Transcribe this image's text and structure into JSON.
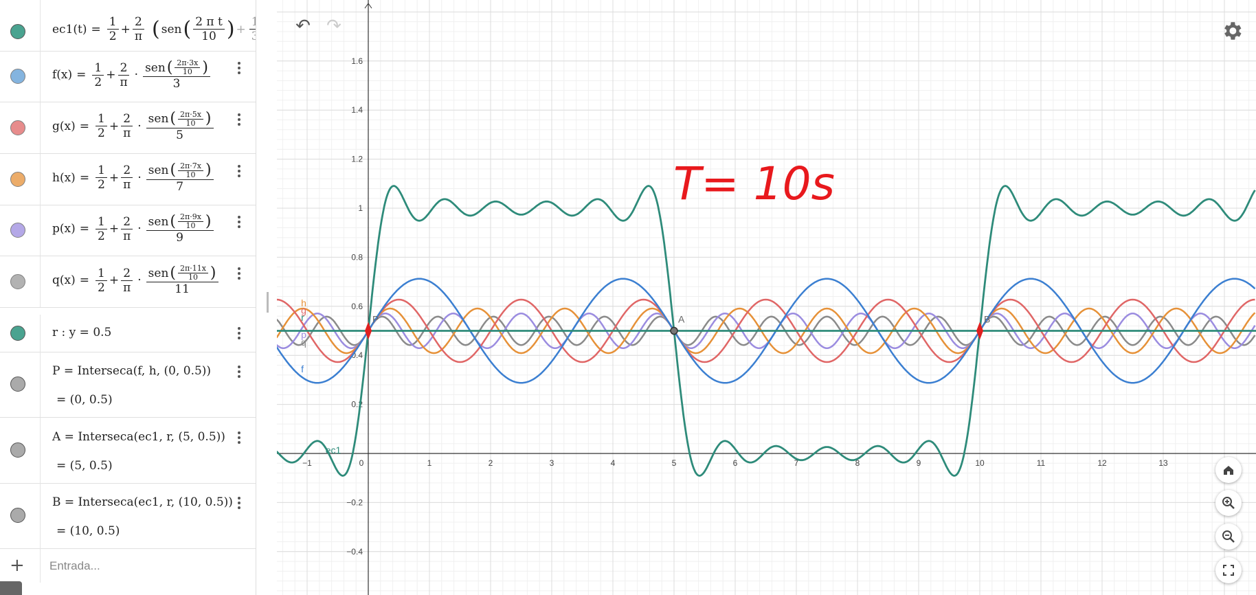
{
  "algebra": {
    "rows": [
      {
        "id": "ec1",
        "name": "ec1(t)",
        "color": "#2e8b7a"
      },
      {
        "id": "f",
        "name": "f(x)",
        "color": "#5b9bd5",
        "k": "3",
        "num": "2π·3x"
      },
      {
        "id": "g",
        "name": "g(x)",
        "color": "#e06666",
        "k": "5",
        "num": "2π·5x"
      },
      {
        "id": "h",
        "name": "h(x)",
        "color": "#e69138",
        "k": "7",
        "num": "2π·7x"
      },
      {
        "id": "p",
        "name": "p(x)",
        "color": "#9b8ce0",
        "k": "9",
        "num": "2π·9x"
      },
      {
        "id": "q",
        "name": "q(x)",
        "color": "#999999",
        "k": "11",
        "num": "2π·11x"
      }
    ],
    "ec1_tail": "sen",
    "ec1_inner_num": "2 π t",
    "ec1_inner_den": "10",
    "ec1_next_num": "1",
    "ec1_next_den": "3",
    "ec1_trunc": "s",
    "half_num": "1",
    "half_den": "2",
    "two_num": "2",
    "pi": "π",
    "sen": "sen",
    "ten": "10",
    "r_line": "r : y = 0.5",
    "r_color": "#2e8b7a",
    "points": [
      {
        "def": "P = Interseca(f, h, (0,  0.5))",
        "val": "= (0, 0.5)",
        "color": "#aaaaaa"
      },
      {
        "def": "A = Interseca(ec1, r, (5,  0.5))",
        "val": "= (5, 0.5)",
        "color": "#aaaaaa"
      },
      {
        "def": "B = Interseca(ec1, r, (10,  0.5))",
        "val": "= (10, 0.5)",
        "color": "#aaaaaa"
      }
    ],
    "input_placeholder": "Entrada..."
  },
  "toolbar": {
    "undo_icon": "undo-icon",
    "redo_icon": "redo-icon",
    "settings_icon": "gear-icon"
  },
  "chart_data": {
    "type": "line",
    "xlim": [
      -1.5,
      14.5
    ],
    "ylim": [
      -0.55,
      1.75
    ],
    "xticks": [
      "-1",
      "0",
      "1",
      "2",
      "3",
      "4",
      "5",
      "6",
      "7",
      "8",
      "9",
      "10",
      "11",
      "12",
      "13"
    ],
    "yticks": [
      "-0.4",
      "-0.2",
      "0.2",
      "0.4",
      "0.6",
      "0.8",
      "1",
      "1.2",
      "1.4",
      "1.6"
    ],
    "grid": true,
    "series": [
      {
        "name": "ec1",
        "color": "#2e8b7a",
        "terms": [
          1,
          3,
          5,
          7,
          9,
          11
        ]
      },
      {
        "name": "f",
        "color": "#3b7fd1",
        "k": 3
      },
      {
        "name": "g",
        "color": "#e06666",
        "k": 5
      },
      {
        "name": "h",
        "color": "#e69138",
        "k": 7
      },
      {
        "name": "p",
        "color": "#9b8ce0",
        "k": 9
      },
      {
        "name": "q",
        "color": "#8a8a8a",
        "k": 11
      },
      {
        "name": "r",
        "color": "#2e8b7a",
        "y": 0.5
      }
    ],
    "points": [
      {
        "label": "P",
        "x": 0,
        "y": 0.5,
        "color": "#e02020"
      },
      {
        "label": "A",
        "x": 5,
        "y": 0.5,
        "color": "#555555"
      },
      {
        "label": "B",
        "x": 10,
        "y": 0.5,
        "color": "#e02020"
      }
    ],
    "annotation": "T= 10s",
    "annotation_color": "#e8191d"
  }
}
